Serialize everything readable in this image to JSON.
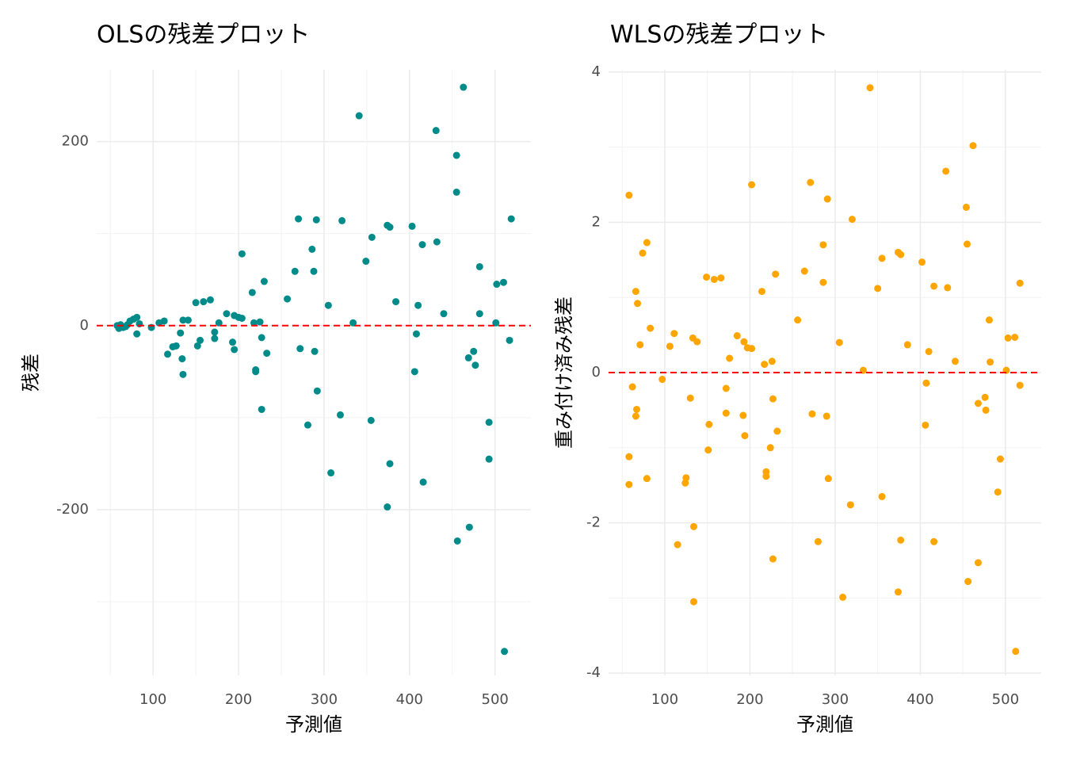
{
  "chart_data": [
    {
      "type": "scatter",
      "title": "OLSの残差プロット",
      "xlabel": "予測値",
      "ylabel": "残差",
      "color": "#008b8b",
      "xlim": [
        34,
        542
      ],
      "ylim": [
        -380,
        278
      ],
      "xticks": [
        100,
        200,
        300,
        400,
        500
      ],
      "yticks": [
        -200,
        0,
        200
      ],
      "xminor": [
        50,
        150,
        250,
        350,
        450
      ],
      "yminor": [
        -300,
        -100,
        100
      ],
      "grid": true,
      "hline": 0,
      "hline_color": "#ff0000",
      "x": [
        58,
        60,
        62,
        65,
        68,
        70,
        73,
        77,
        81,
        81,
        84,
        98,
        107,
        113,
        117,
        123,
        127,
        132,
        134,
        135,
        135,
        141,
        150,
        152,
        155,
        159,
        167,
        172,
        172,
        177,
        186,
        193,
        195,
        195,
        200,
        204,
        204,
        216,
        218,
        220,
        220,
        225,
        227,
        227,
        230,
        233,
        257,
        266,
        270,
        272,
        281,
        286,
        288,
        289,
        291,
        292,
        305,
        308,
        319,
        321,
        334,
        341,
        349,
        355,
        356,
        374,
        374,
        377,
        377,
        384,
        403,
        406,
        408,
        410,
        415,
        416,
        431,
        432,
        440,
        455,
        455,
        456,
        463,
        469,
        470,
        475,
        477,
        482,
        482,
        493,
        493,
        501,
        502,
        510,
        511,
        517,
        519
      ],
      "values": [
        0,
        -3,
        1,
        -2,
        -1,
        1,
        5,
        7,
        9,
        -9,
        2,
        -2,
        3,
        5,
        -31,
        -23,
        -22,
        -8,
        -36,
        -53,
        6,
        6,
        25,
        -22,
        -16,
        26,
        28,
        -7,
        -14,
        3,
        13,
        -18,
        -26,
        11,
        9,
        8,
        78,
        36,
        3,
        -48,
        -50,
        4,
        -13,
        -91,
        48,
        -30,
        29,
        59,
        116,
        -25,
        -108,
        83,
        59,
        -28,
        115,
        -71,
        22,
        -160,
        -97,
        114,
        3,
        228,
        70,
        -103,
        96,
        109,
        -197,
        107,
        -150,
        26,
        108,
        -50,
        -9,
        22,
        88,
        -170,
        212,
        91,
        13,
        185,
        145,
        -234,
        259,
        -35,
        -219,
        -28,
        -43,
        13,
        64,
        -105,
        -145,
        3,
        45,
        47,
        -354,
        -16,
        116
      ]
    },
    {
      "type": "scatter",
      "title": "WLSの残差プロット",
      "xlabel": "予測値",
      "ylabel": "重み付け済み残差",
      "color": "#ffa500",
      "xlim": [
        34,
        542
      ],
      "ylim": [
        -4.03,
        4.03
      ],
      "xticks": [
        100,
        200,
        300,
        400,
        500
      ],
      "yticks": [
        -4,
        -2,
        0,
        2,
        4
      ],
      "xminor": [
        50,
        150,
        250,
        350,
        450
      ],
      "yminor": [
        -3,
        -1,
        1,
        3
      ],
      "grid": true,
      "hline": 0,
      "hline_color": "#ff0000",
      "x": [
        58,
        58,
        58,
        62,
        66,
        67,
        66,
        68,
        71,
        74,
        79,
        79,
        83,
        97,
        106,
        111,
        115,
        124,
        125,
        130,
        133,
        134,
        134,
        138,
        149,
        152,
        151,
        158,
        166,
        172,
        172,
        176,
        185,
        192,
        193,
        194,
        197,
        202,
        202,
        214,
        217,
        219,
        219,
        224,
        226,
        227,
        227,
        230,
        232,
        256,
        264,
        271,
        273,
        280,
        286,
        286,
        290,
        291,
        292,
        305,
        309,
        318,
        320,
        333,
        341,
        350,
        355,
        355,
        374,
        374,
        377,
        377,
        385,
        402,
        407,
        406,
        410,
        416,
        416,
        430,
        432,
        441,
        454,
        455,
        456,
        462,
        468,
        468,
        476,
        477,
        481,
        482,
        491,
        494,
        501,
        503,
        511,
        512,
        517,
        517
      ],
      "values": [
        2.36,
        -1.12,
        -1.49,
        -0.19,
        1.08,
        -0.49,
        -0.58,
        0.92,
        0.37,
        1.59,
        1.73,
        -1.41,
        0.59,
        -0.09,
        0.35,
        0.52,
        -2.29,
        -1.47,
        -1.4,
        -0.34,
        0.46,
        -2.05,
        -3.05,
        0.41,
        1.27,
        -0.69,
        -1.03,
        1.24,
        1.26,
        -0.21,
        -0.54,
        0.19,
        0.49,
        -0.57,
        0.41,
        -0.84,
        0.33,
        0.32,
        2.5,
        1.08,
        0.11,
        -1.32,
        -1.38,
        -1,
        0.15,
        -0.35,
        -2.48,
        1.31,
        -0.78,
        0.7,
        1.35,
        2.53,
        -0.55,
        -2.25,
        1.7,
        1.2,
        -0.58,
        2.31,
        -1.41,
        0.4,
        -2.99,
        -1.76,
        2.04,
        0.03,
        3.79,
        1.12,
        1.52,
        -1.65,
        1.6,
        -2.92,
        1.57,
        -2.23,
        0.37,
        1.47,
        -0.14,
        -0.7,
        0.28,
        1.15,
        -2.25,
        2.68,
        1.13,
        0.15,
        2.2,
        1.71,
        -2.78,
        3.02,
        -0.41,
        -2.53,
        -0.33,
        -0.5,
        0.7,
        0.14,
        -1.59,
        -1.15,
        0.03,
        0.46,
        0.47,
        -3.71,
        -0.17,
        1.19
      ]
    }
  ]
}
